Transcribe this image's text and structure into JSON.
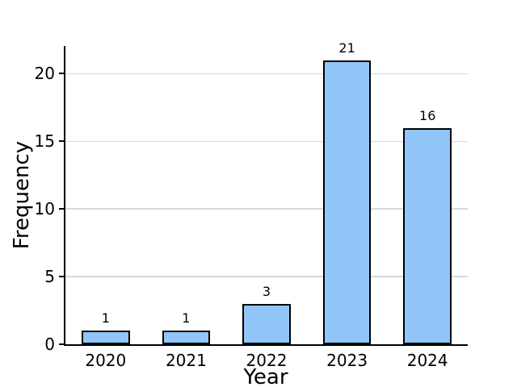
{
  "chart_data": {
    "type": "bar",
    "title": "",
    "categories": [
      "2020",
      "2021",
      "2022",
      "2023",
      "2024"
    ],
    "values": [
      1,
      1,
      3,
      21,
      16
    ],
    "bar_labels": [
      "1",
      "1",
      "3",
      "21",
      "16"
    ],
    "xlabel": "Year",
    "ylabel": "Frequency",
    "yticks": [
      0,
      5,
      10,
      15,
      20
    ],
    "ylim": [
      0,
      22.05
    ],
    "grid": "horizontal-only",
    "legend": "none",
    "bar_width_fraction": 0.6,
    "bar_color": "#92C5F8",
    "bar_edge_color": "#000000",
    "grid_color": "#D9D9D9",
    "axis_color": "#000000",
    "background": "#FFFFFF"
  }
}
